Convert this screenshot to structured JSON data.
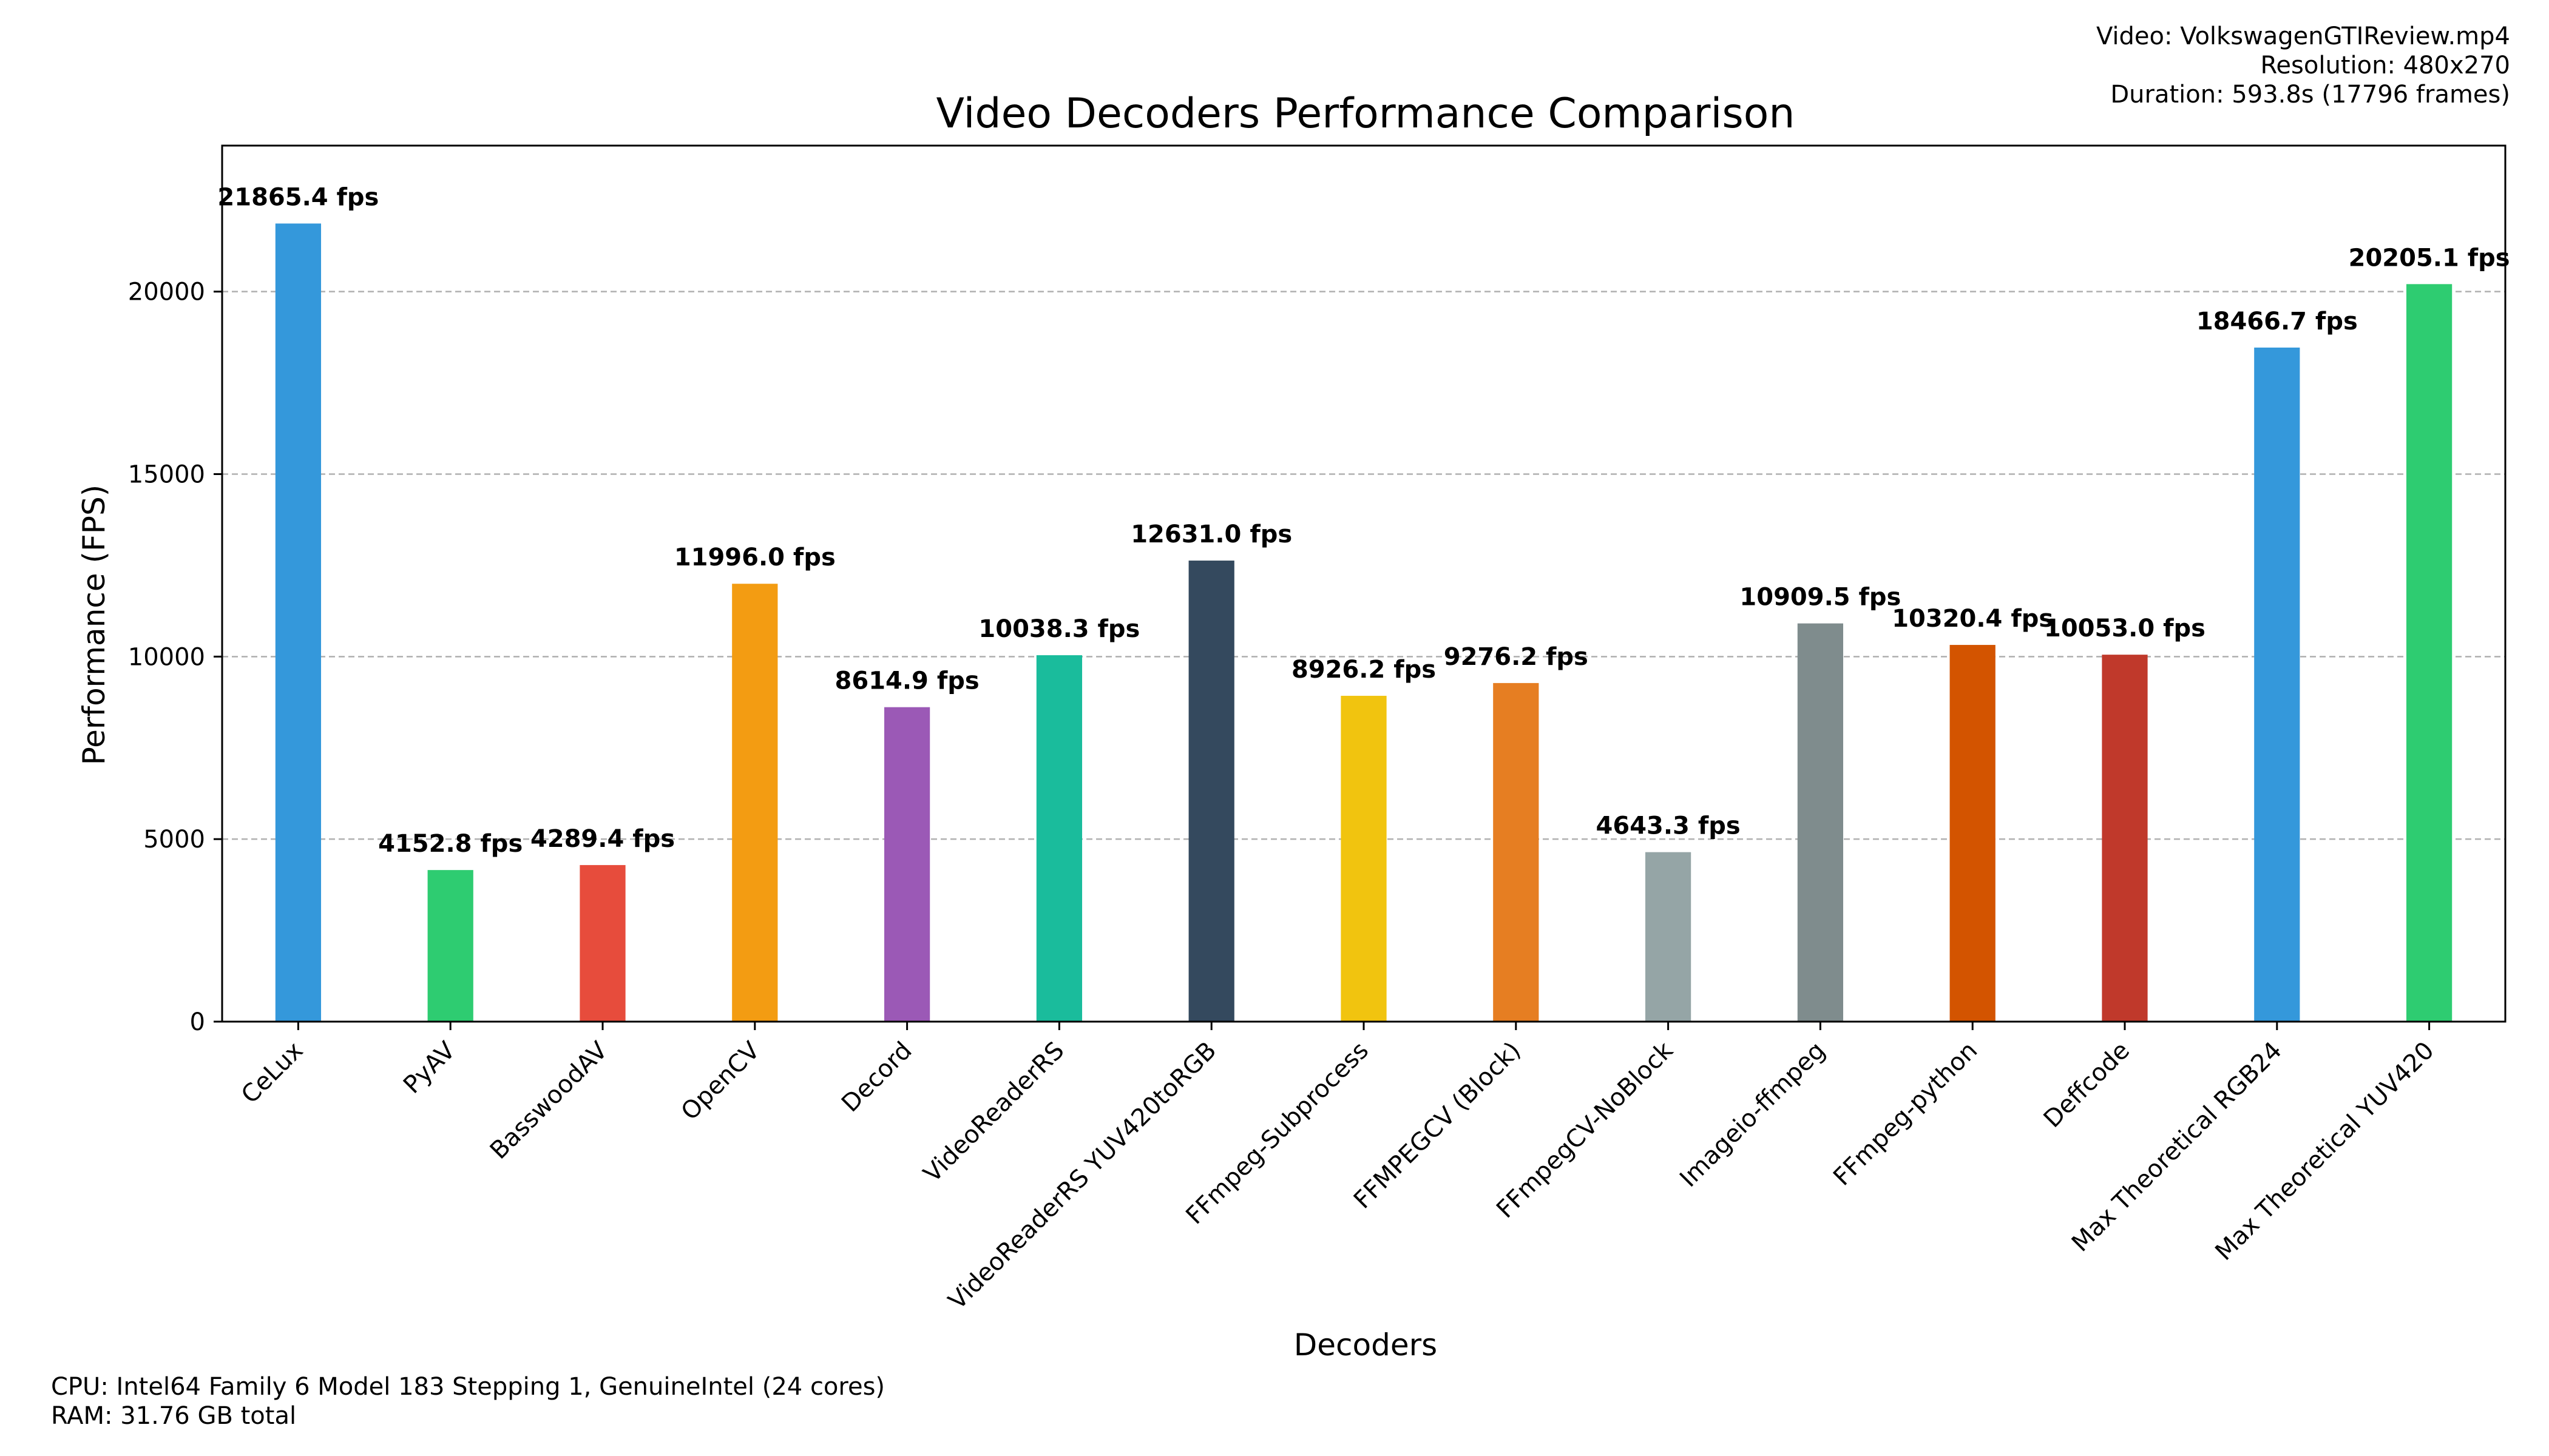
{
  "chart_data": {
    "type": "bar",
    "title": "Video Decoders Performance Comparison",
    "xlabel": "Decoders",
    "ylabel": "Performance (FPS)",
    "ylim": [
      0,
      24000
    ],
    "yticks": [
      0,
      5000,
      10000,
      15000,
      20000
    ],
    "grid": "horizontal dashed",
    "value_suffix": " fps",
    "categories": [
      "CeLux",
      "PyAV",
      "BasswoodAV",
      "OpenCV",
      "Decord",
      "VideoReaderRS",
      "VideoReaderRS YUV420toRGB",
      "FFmpeg-Subprocess",
      "FFMPEGCV (Block)",
      "FFmpegCV-NoBlock",
      "Imageio-ffmpeg",
      "FFmpeg-python",
      "Deffcode",
      "Max Theoretical RGB24",
      "Max Theoretical YUV420"
    ],
    "values": [
      21865.4,
      4152.8,
      4289.4,
      11996.0,
      8614.9,
      10038.3,
      12631.0,
      8926.2,
      9276.2,
      4643.3,
      10909.5,
      10320.4,
      10053.0,
      18466.7,
      20205.1
    ],
    "colors": [
      "#3498db",
      "#2ecc71",
      "#e74c3c",
      "#f39c12",
      "#9b59b6",
      "#1abc9c",
      "#34495e",
      "#f1c40f",
      "#e67e22",
      "#95a5a6",
      "#7f8c8d",
      "#d35400",
      "#c0392b",
      "#3498db",
      "#2ecc71"
    ]
  },
  "info": {
    "video": "Video: VolkswagenGTIReview.mp4",
    "resolution": "Resolution: 480x270",
    "duration": "Duration: 593.8s (17796 frames)",
    "cpu": "CPU: Intel64 Family 6 Model 183 Stepping 1, GenuineIntel (24 cores)",
    "ram": "RAM: 31.76 GB total"
  }
}
